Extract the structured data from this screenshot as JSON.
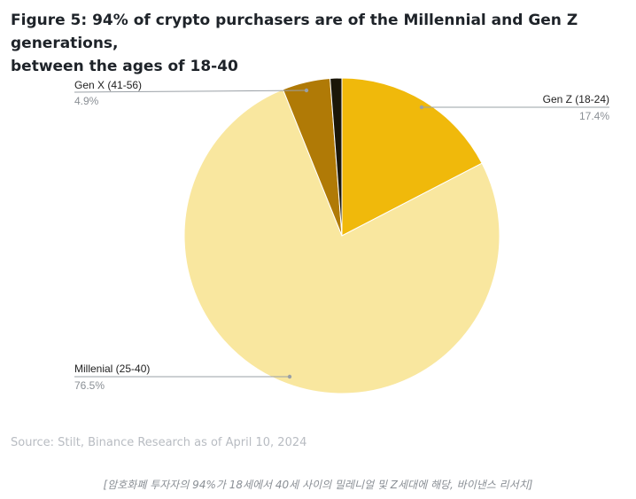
{
  "header": {
    "title_line1": "Figure 5: 94% of crypto purchasers are of the Millennial and Gen Z generations,",
    "title_line2": "between the ages of 18-40"
  },
  "footer": {
    "source": "Source: Stilt, Binance Research as of April 10, 2024",
    "caption": "[암호화폐 투자자의 94%가 18세에서 40세 사이의 밀레니얼 및 Z세대에 해당, 바이낸스 리서치]"
  },
  "chart_data": {
    "type": "pie",
    "title": "Figure 5: 94% of crypto purchasers are of the Millennial and Gen Z generations, between the ages of 18-40",
    "start": "12 o'clock, clockwise",
    "slices": [
      {
        "key": "genz",
        "label": "Gen Z (18-24)",
        "value": 17.4,
        "value_label": "17.4%",
        "color": "#f0b90b"
      },
      {
        "key": "millennial",
        "label": "Millenial (25-40)",
        "value": 76.5,
        "value_label": "76.5%",
        "color": "#f9e79f"
      },
      {
        "key": "genx",
        "label": "Gen X (41-56)",
        "value": 4.9,
        "value_label": "4.9%",
        "color": "#b07a06"
      },
      {
        "key": "other",
        "label": "",
        "value": 1.2,
        "value_label": "",
        "color": "#1a1608"
      }
    ],
    "legend": "callout labels"
  }
}
